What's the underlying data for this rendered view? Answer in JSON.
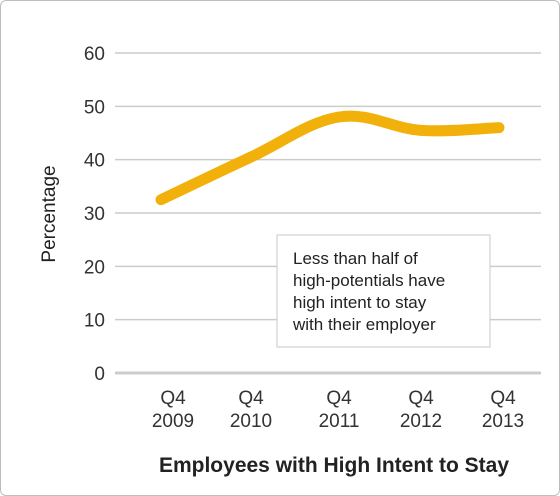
{
  "chart_data": {
    "type": "line",
    "categories": [
      [
        "Q4",
        "2009"
      ],
      [
        "Q4",
        "2010"
      ],
      [
        "Q4",
        "2011"
      ],
      [
        "Q4",
        "2012"
      ],
      [
        "Q4",
        "2013"
      ]
    ],
    "values": [
      32.5,
      40.5,
      48,
      45.5,
      46
    ],
    "ylabel": "Percentage",
    "xlabel": "Employees with High Intent to Stay",
    "ylim": [
      0,
      60
    ],
    "yticks": [
      0,
      10,
      20,
      30,
      40,
      50,
      60
    ],
    "grid": true,
    "line_color": "#F2B10A",
    "grid_color": "#cccccc",
    "annotation": [
      "Less than half of",
      "high-potentials have",
      "high intent to stay",
      "with their employer"
    ]
  }
}
